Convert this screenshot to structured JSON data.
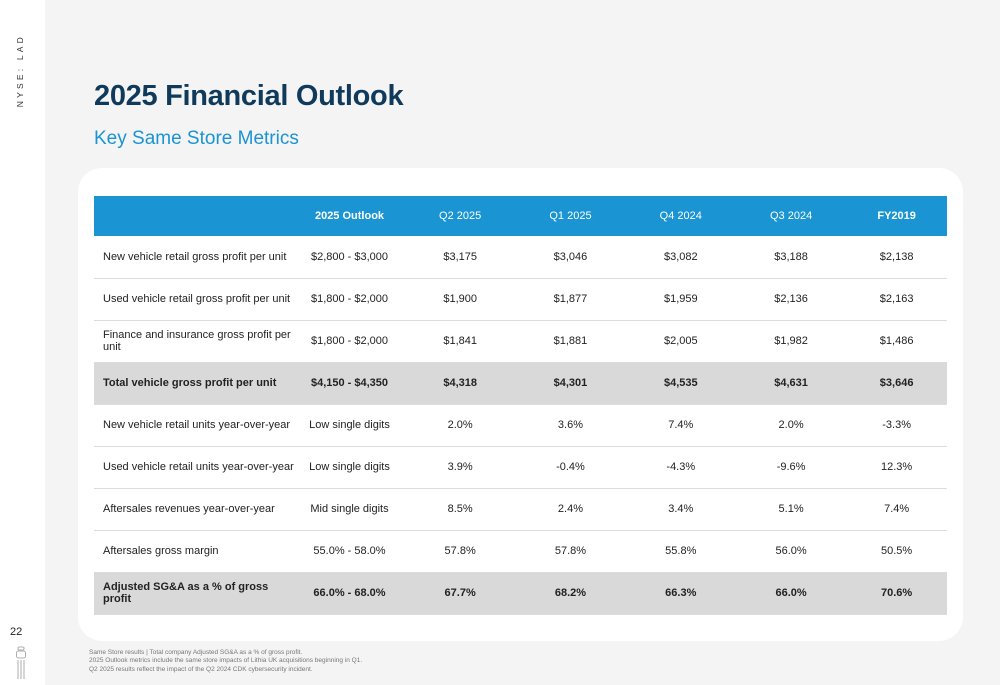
{
  "sidebar": {
    "ticker": "NYSE: LAD",
    "page_number": "22"
  },
  "header": {
    "title": "2025 Financial Outlook",
    "subtitle": "Key Same Store Metrics"
  },
  "table": {
    "columns": [
      "",
      "2025 Outlook",
      "Q2 2025",
      "Q1 2025",
      "Q4 2024",
      "Q3 2024",
      "FY2019"
    ],
    "rows": [
      {
        "label": "New vehicle retail gross profit per unit",
        "values": [
          "$2,800 - $3,000",
          "$3,175",
          "$3,046",
          "$3,082",
          "$3,188",
          "$2,138"
        ],
        "total": false
      },
      {
        "label": "Used vehicle retail gross profit per unit",
        "values": [
          "$1,800 - $2,000",
          "$1,900",
          "$1,877",
          "$1,959",
          "$2,136",
          "$2,163"
        ],
        "total": false
      },
      {
        "label": "Finance and insurance gross profit per unit",
        "values": [
          "$1,800 - $2,000",
          "$1,841",
          "$1,881",
          "$2,005",
          "$1,982",
          "$1,486"
        ],
        "total": false
      },
      {
        "label": "Total vehicle gross profit per unit",
        "values": [
          "$4,150 - $4,350",
          "$4,318",
          "$4,301",
          "$4,535",
          "$4,631",
          "$3,646"
        ],
        "total": true
      },
      {
        "label": "New vehicle retail units year-over-year",
        "values": [
          "Low single digits",
          "2.0%",
          "3.6%",
          "7.4%",
          "2.0%",
          "-3.3%"
        ],
        "total": false
      },
      {
        "label": "Used vehicle retail units year-over-year",
        "values": [
          "Low single digits",
          "3.9%",
          "-0.4%",
          "-4.3%",
          "-9.6%",
          "12.3%"
        ],
        "total": false
      },
      {
        "label": "Aftersales revenues year-over-year",
        "values": [
          "Mid single digits",
          "8.5%",
          "2.4%",
          "3.4%",
          "5.1%",
          "7.4%"
        ],
        "total": false
      },
      {
        "label": "Aftersales gross margin",
        "values": [
          "55.0% - 58.0%",
          "57.8%",
          "57.8%",
          "55.8%",
          "56.0%",
          "50.5%"
        ],
        "total": false
      },
      {
        "label": "Adjusted SG&A as a % of gross profit",
        "values": [
          "66.0% - 68.0%",
          "67.7%",
          "68.2%",
          "66.3%",
          "66.0%",
          "70.6%"
        ],
        "total": true
      }
    ]
  },
  "footnotes": [
    "Same Store results | Total company Adjusted SG&A as a % of gross profit.",
    "2025 Outlook metrics include the same store impacts of Lithia UK acquisitions beginning in Q1.",
    "Q2 2025 results reflect the impact of the Q2 2024 CDK cybersecurity incident."
  ],
  "colors": {
    "title": "#0f3a5c",
    "accent": "#1a94d2",
    "total_row": "#d9d9d9"
  },
  "icons": {
    "logo": "lithia-logo-icon"
  }
}
